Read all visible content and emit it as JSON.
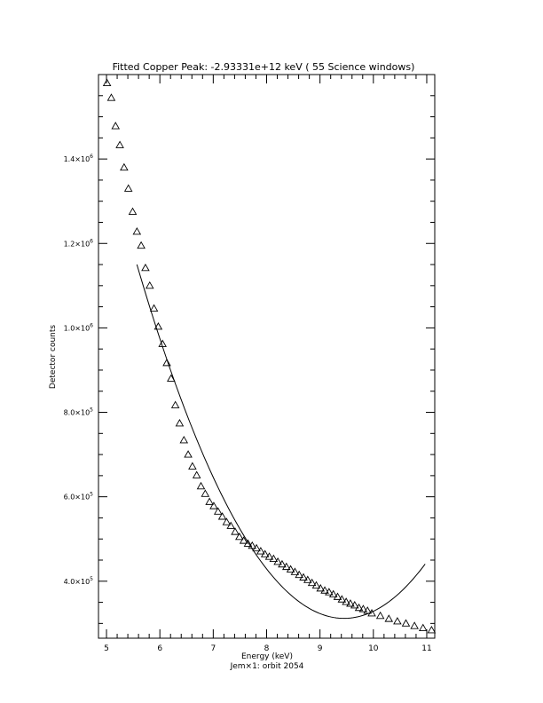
{
  "chart_data": {
    "type": "scatter",
    "title": "Fitted Copper Peak:  -2.93331e+12 keV (      55 Science windows)",
    "xlabel": "Energy (keV)",
    "ylabel": "Detector counts",
    "subtitle": "Jem×1: orbit 2054",
    "xlim": [
      4.85,
      11.15
    ],
    "ylim": [
      265000,
      1600000
    ],
    "x_ticks": [
      "5",
      "6",
      "7",
      "8",
      "9",
      "10",
      "11"
    ],
    "x_tick_values": [
      5,
      6,
      7,
      8,
      9,
      10,
      11
    ],
    "y_ticks": [
      {
        "value": 400000,
        "mantissa": "4.0×10",
        "exp": "5"
      },
      {
        "value": 600000,
        "mantissa": "6.0×10",
        "exp": "5"
      },
      {
        "value": 800000,
        "mantissa": "8.0×10",
        "exp": "5"
      },
      {
        "value": 1000000,
        "mantissa": "1.0×10",
        "exp": "6"
      },
      {
        "value": 1200000,
        "mantissa": "1.2×10",
        "exp": "6"
      },
      {
        "value": 1400000,
        "mantissa": "1.4×10",
        "exp": "6"
      }
    ],
    "series": [
      {
        "marker": "triangle",
        "x": [
          5.01,
          5.09,
          5.17,
          5.25,
          5.33,
          5.41,
          5.49,
          5.57,
          5.65,
          5.73,
          5.81,
          5.89,
          5.97,
          6.05,
          6.13,
          6.21,
          6.29,
          6.37,
          6.45,
          6.53,
          6.61,
          6.69,
          6.77,
          6.85,
          6.93,
          7.01,
          7.09,
          7.17,
          7.25,
          7.33,
          7.41,
          7.49,
          7.57,
          7.65,
          7.73,
          7.81,
          7.89,
          7.97,
          8.05,
          8.13,
          8.21,
          8.29,
          8.37,
          8.45,
          8.53,
          8.61,
          8.69,
          8.77,
          8.85,
          8.93,
          9.01,
          9.09,
          9.17,
          9.25,
          9.33,
          9.41,
          9.49,
          9.57,
          9.65,
          9.73,
          9.81,
          9.89,
          9.97,
          10.13,
          10.29,
          10.45,
          10.61,
          10.77,
          10.93,
          11.09
        ],
        "y": [
          1580000,
          1545000,
          1478000,
          1433000,
          1380000,
          1330000,
          1275000,
          1228000,
          1195000,
          1142000,
          1100000,
          1046000,
          1003000,
          962000,
          917000,
          880000,
          817000,
          774000,
          734000,
          700000,
          672000,
          651000,
          625000,
          607000,
          588000,
          578000,
          565000,
          553000,
          540000,
          531000,
          517000,
          505000,
          496000,
          489000,
          484000,
          478000,
          471000,
          464000,
          458000,
          453000,
          446000,
          440000,
          434000,
          428000,
          422000,
          415000,
          409000,
          403000,
          396000,
          390000,
          383000,
          378000,
          374000,
          369000,
          363000,
          357000,
          351000,
          347000,
          343000,
          337000,
          334000,
          330000,
          324000,
          318000,
          311000,
          305000,
          300000,
          294000,
          289000,
          284000
        ]
      },
      {
        "marker": "line",
        "curve": "quadratic",
        "x_range": [
          5.57,
          10.97
        ],
        "vertex_x": 9.45,
        "vertex_y": 312000,
        "y_at_start": 1150000
      }
    ]
  }
}
